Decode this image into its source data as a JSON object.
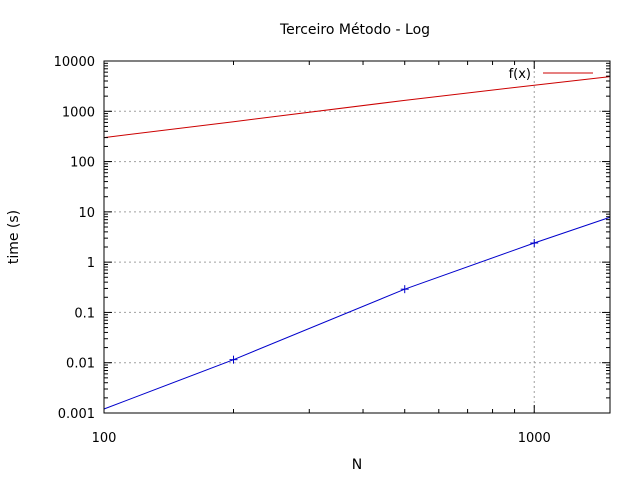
{
  "chart_data": {
    "type": "line",
    "title": "Terceiro Método - Log",
    "xlabel": "N",
    "ylabel": "time (s)",
    "x_scale": "log",
    "y_scale": "log",
    "xlim": [
      100,
      1500
    ],
    "ylim": [
      0.001,
      10000
    ],
    "x_ticks": [
      {
        "value": 100,
        "label": "100"
      },
      {
        "value": 1000,
        "label": "1000"
      }
    ],
    "y_ticks": [
      {
        "value": 0.001,
        "label": "0.001"
      },
      {
        "value": 0.01,
        "label": "0.01"
      },
      {
        "value": 0.1,
        "label": "0.1"
      },
      {
        "value": 1,
        "label": "1"
      },
      {
        "value": 10,
        "label": "10"
      },
      {
        "value": 100,
        "label": "100"
      },
      {
        "value": 1000,
        "label": "1000"
      },
      {
        "value": 10000,
        "label": "10000"
      }
    ],
    "grid": true,
    "legend_position": "top-right",
    "series": [
      {
        "name": "",
        "color": "#0000cc",
        "style": "line+points",
        "x": [
          100,
          200,
          500,
          1000,
          1500
        ],
        "y": [
          0.0012,
          0.0115,
          0.29,
          2.4,
          7.8
        ],
        "points_x": [
          200,
          500,
          1000
        ]
      },
      {
        "name": "f(x)",
        "color": "#cc0000",
        "style": "line",
        "x": [
          100,
          200,
          500,
          1000,
          1500
        ],
        "y": [
          300,
          620,
          1650,
          3300,
          4900
        ]
      }
    ]
  }
}
